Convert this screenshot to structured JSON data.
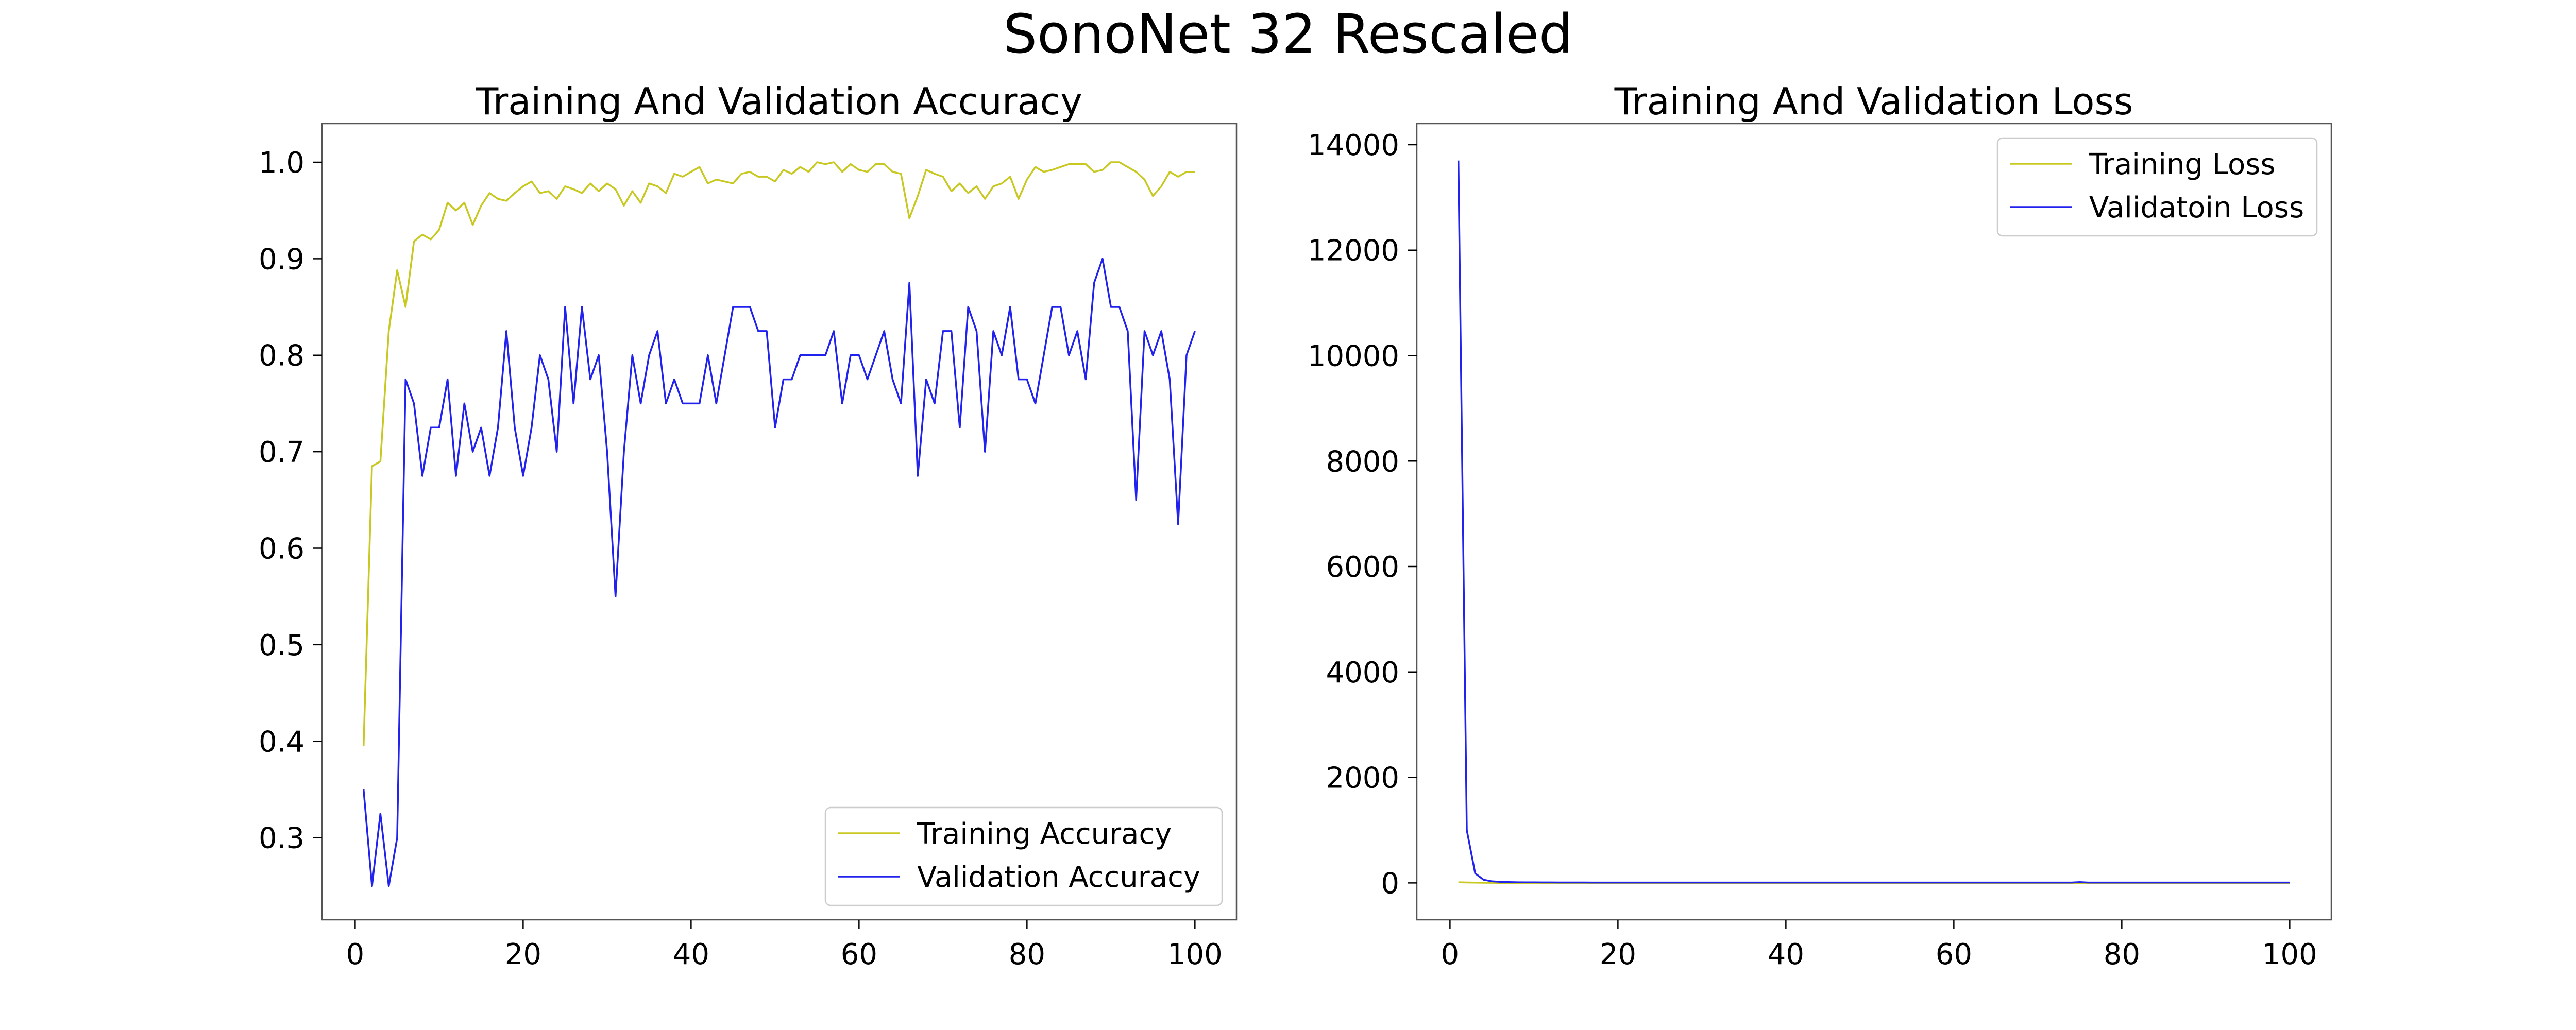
{
  "figure": {
    "title": "SonoNet 32 Rescaled"
  },
  "chart_data": [
    {
      "type": "line",
      "title": "Training And Validation Accuracy",
      "xlabel": "",
      "ylabel": "",
      "xlim": [
        -3.95,
        104.95
      ],
      "ylim": [
        0.215,
        1.04
      ],
      "xticks": [
        0,
        20,
        40,
        60,
        80,
        100
      ],
      "yticks": [
        0.3,
        0.4,
        0.5,
        0.6,
        0.7,
        0.8,
        0.9,
        1.0
      ],
      "ytick_labels": [
        "0.3",
        "0.4",
        "0.5",
        "0.6",
        "0.7",
        "0.8",
        "0.9",
        "1.0"
      ],
      "grid": false,
      "legend_position": "lower-right",
      "series": [
        {
          "name": "Training Accuracy",
          "color": "#c8c820",
          "x_start": 1,
          "values": [
            0.395,
            0.685,
            0.69,
            0.825,
            0.888,
            0.85,
            0.918,
            0.925,
            0.92,
            0.93,
            0.958,
            0.95,
            0.958,
            0.935,
            0.955,
            0.968,
            0.962,
            0.96,
            0.968,
            0.975,
            0.98,
            0.968,
            0.97,
            0.962,
            0.975,
            0.972,
            0.968,
            0.978,
            0.97,
            0.978,
            0.972,
            0.955,
            0.97,
            0.958,
            0.978,
            0.975,
            0.968,
            0.988,
            0.985,
            0.99,
            0.995,
            0.978,
            0.982,
            0.98,
            0.978,
            0.988,
            0.99,
            0.985,
            0.985,
            0.98,
            0.992,
            0.988,
            0.995,
            0.99,
            1.0,
            0.998,
            1.0,
            0.99,
            0.998,
            0.992,
            0.99,
            0.998,
            0.998,
            0.99,
            0.988,
            0.942,
            0.965,
            0.992,
            0.988,
            0.985,
            0.97,
            0.978,
            0.968,
            0.975,
            0.962,
            0.975,
            0.978,
            0.985,
            0.962,
            0.982,
            0.995,
            0.99,
            0.992,
            0.995,
            0.998,
            0.998,
            0.998,
            0.99,
            0.992,
            1.0,
            1.0,
            0.995,
            0.99,
            0.982,
            0.965,
            0.975,
            0.99,
            0.985,
            0.99,
            0.99
          ]
        },
        {
          "name": "Validation Accuracy",
          "color": "#2222ee",
          "x_start": 1,
          "values": [
            0.35,
            0.25,
            0.325,
            0.25,
            0.3,
            0.775,
            0.75,
            0.675,
            0.725,
            0.725,
            0.775,
            0.675,
            0.75,
            0.7,
            0.725,
            0.675,
            0.725,
            0.825,
            0.725,
            0.675,
            0.725,
            0.8,
            0.775,
            0.7,
            0.85,
            0.75,
            0.85,
            0.775,
            0.8,
            0.7,
            0.55,
            0.7,
            0.8,
            0.75,
            0.8,
            0.825,
            0.75,
            0.775,
            0.75,
            0.75,
            0.75,
            0.8,
            0.75,
            0.8,
            0.85,
            0.85,
            0.85,
            0.825,
            0.825,
            0.725,
            0.775,
            0.775,
            0.8,
            0.8,
            0.8,
            0.8,
            0.825,
            0.75,
            0.8,
            0.8,
            0.775,
            0.8,
            0.825,
            0.775,
            0.75,
            0.875,
            0.675,
            0.775,
            0.75,
            0.825,
            0.825,
            0.725,
            0.85,
            0.825,
            0.7,
            0.825,
            0.8,
            0.85,
            0.775,
            0.775,
            0.75,
            0.8,
            0.85,
            0.85,
            0.8,
            0.825,
            0.775,
            0.875,
            0.9,
            0.85,
            0.85,
            0.825,
            0.65,
            0.825,
            0.8,
            0.825,
            0.775,
            0.625,
            0.8,
            0.825
          ]
        }
      ]
    },
    {
      "type": "line",
      "title": "Training And Validation Loss",
      "xlabel": "",
      "ylabel": "",
      "xlim": [
        -3.95,
        104.95
      ],
      "ylim": [
        -700,
        14400
      ],
      "xticks": [
        0,
        20,
        40,
        60,
        80,
        100
      ],
      "yticks": [
        0,
        2000,
        4000,
        6000,
        8000,
        10000,
        12000,
        14000
      ],
      "ytick_labels": [
        "0",
        "2000",
        "4000",
        "6000",
        "8000",
        "10000",
        "12000",
        "14000"
      ],
      "grid": false,
      "legend_position": "upper-right",
      "series": [
        {
          "name": "Training Loss",
          "color": "#c8c820",
          "x_start": 1,
          "values": [
            12,
            8,
            5,
            3,
            2,
            1.5,
            1,
            1,
            1,
            1,
            1,
            1,
            1,
            1,
            1,
            1,
            1,
            1,
            1,
            1,
            1,
            1,
            1,
            1,
            1,
            1,
            1,
            1,
            1,
            1,
            1,
            1,
            1,
            1,
            1,
            1,
            1,
            1,
            1,
            1,
            1,
            1,
            1,
            1,
            1,
            1,
            1,
            1,
            1,
            1,
            1,
            1,
            1,
            1,
            1,
            1,
            1,
            1,
            1,
            1,
            1,
            1,
            1,
            1,
            1,
            1,
            1,
            1,
            1,
            1,
            1,
            1,
            1,
            1,
            1,
            1,
            1,
            1,
            1,
            1,
            1,
            1,
            1,
            1,
            1,
            1,
            1,
            1,
            1,
            1,
            1,
            1,
            1,
            1,
            1,
            1,
            1,
            1,
            1,
            1
          ]
        },
        {
          "name": "Validatoin Loss",
          "color": "#2222ee",
          "x_start": 1,
          "values": [
            13700,
            1000,
            180,
            60,
            30,
            20,
            15,
            12,
            10,
            10,
            9,
            9,
            8,
            8,
            8,
            8,
            7,
            7,
            7,
            7,
            7,
            7,
            7,
            7,
            7,
            7,
            7,
            7,
            7,
            7,
            7,
            7,
            7,
            7,
            7,
            7,
            7,
            7,
            7,
            7,
            7,
            7,
            7,
            7,
            7,
            7,
            7,
            7,
            7,
            7,
            7,
            7,
            7,
            7,
            7,
            7,
            7,
            7,
            7,
            7,
            7,
            7,
            7,
            7,
            7,
            7,
            7,
            7,
            7,
            7,
            7,
            7,
            7,
            7,
            15,
            7,
            7,
            7,
            7,
            7,
            7,
            7,
            7,
            7,
            7,
            7,
            7,
            7,
            7,
            7,
            7,
            7,
            7,
            7,
            7,
            7,
            7,
            7,
            7,
            7
          ]
        }
      ]
    }
  ]
}
